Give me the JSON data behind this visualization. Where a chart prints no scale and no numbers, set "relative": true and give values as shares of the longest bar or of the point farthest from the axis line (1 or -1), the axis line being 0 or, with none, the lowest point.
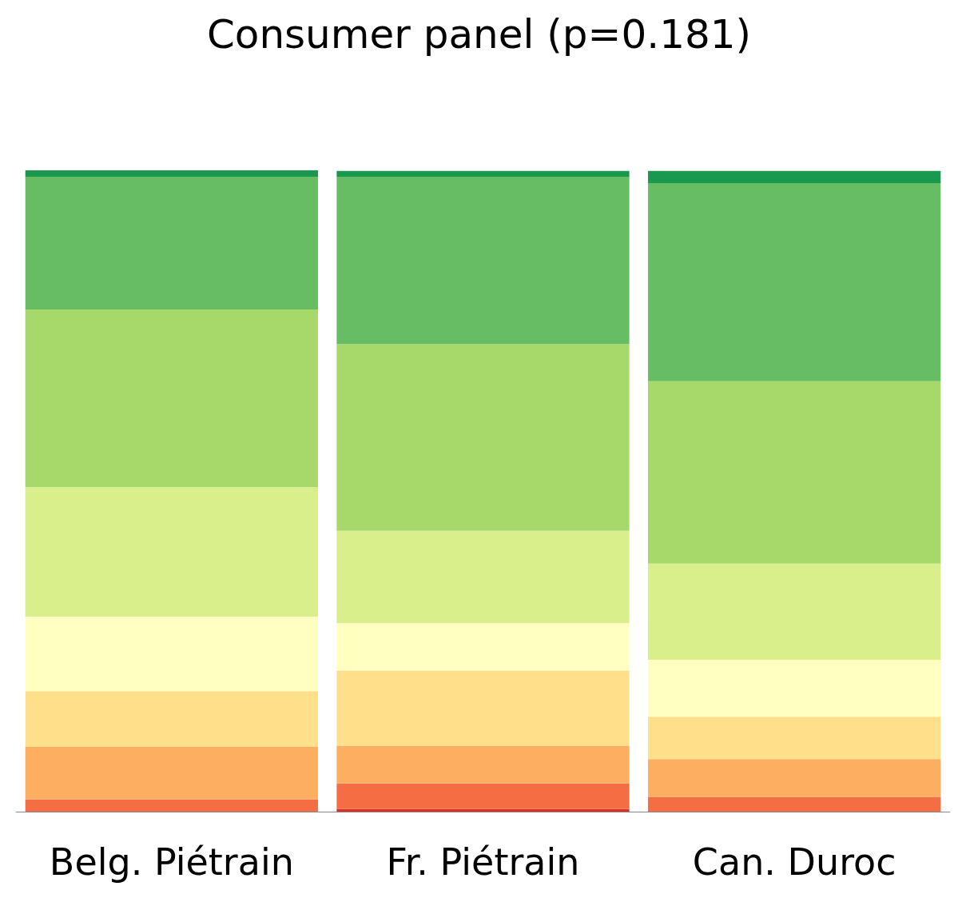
{
  "chart_data": {
    "type": "bar",
    "title": "Consumer panel (p=0.181)",
    "categories": [
      "Belg. Piétrain",
      "Fr. Piétrain",
      "Can. Duroc"
    ],
    "stacked": true,
    "relative": true,
    "series": [
      {
        "color": "#d73027",
        "values": [
          null,
          0.004,
          null
        ]
      },
      {
        "color": "#f46d43",
        "values": [
          0.019,
          0.04,
          0.023
        ]
      },
      {
        "color": "#fdae61",
        "values": [
          0.082,
          0.059,
          0.059
        ]
      },
      {
        "color": "#fee08b",
        "values": [
          0.087,
          0.117,
          0.066
        ]
      },
      {
        "color": "#ffffbf",
        "values": [
          0.116,
          0.074,
          0.089
        ]
      },
      {
        "color": "#d9ef8b",
        "values": [
          0.202,
          0.144,
          0.15
        ]
      },
      {
        "color": "#a6d96a",
        "values": [
          0.277,
          0.291,
          0.284
        ]
      },
      {
        "color": "#66bd63",
        "values": [
          0.207,
          0.261,
          0.309
        ]
      },
      {
        "color": "#1a9850",
        "values": [
          0.01,
          0.009,
          0.019
        ]
      }
    ]
  }
}
